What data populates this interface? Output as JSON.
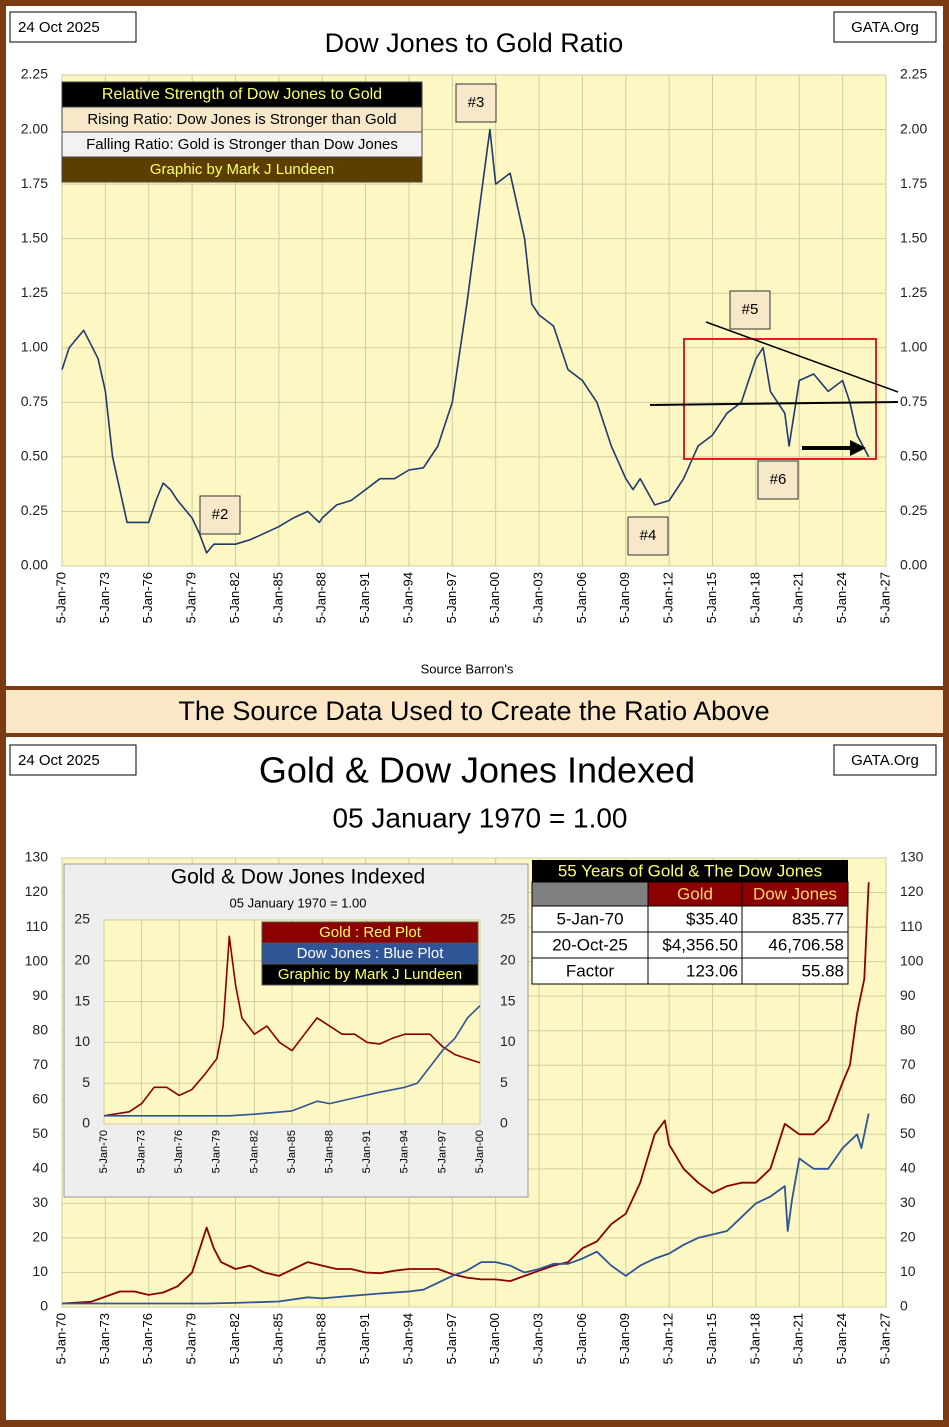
{
  "banner": "The Source Data Used to Create the Ratio Above",
  "chart_data": [
    {
      "type": "line",
      "title": "Dow Jones to Gold Ratio",
      "date": "24 Oct 2025",
      "site": "GATA.Org",
      "source": "Source Barron's",
      "notes": [
        "Relative Strength of Dow Jones to Gold",
        "Rising Ratio: Dow Jones is Stronger than Gold",
        "Falling Ratio: Gold is Stronger than Dow Jones",
        "Graphic by Mark J Lundeen"
      ],
      "annotations": [
        "#2",
        "#3",
        "#4",
        "#5",
        "#6"
      ],
      "xlim": [
        1970,
        2027
      ],
      "xticks": [
        {
          "value": 1970,
          "label": "5-Jan-70"
        },
        {
          "value": 1973,
          "label": "5-Jan-73"
        },
        {
          "value": 1976,
          "label": "5-Jan-76"
        },
        {
          "value": 1979,
          "label": "5-Jan-79"
        },
        {
          "value": 1982,
          "label": "5-Jan-82"
        },
        {
          "value": 1985,
          "label": "5-Jan-85"
        },
        {
          "value": 1988,
          "label": "5-Jan-88"
        },
        {
          "value": 1991,
          "label": "5-Jan-91"
        },
        {
          "value": 1994,
          "label": "5-Jan-94"
        },
        {
          "value": 1997,
          "label": "5-Jan-97"
        },
        {
          "value": 2000,
          "label": "5-Jan-00"
        },
        {
          "value": 2003,
          "label": "5-Jan-03"
        },
        {
          "value": 2006,
          "label": "5-Jan-06"
        },
        {
          "value": 2009,
          "label": "5-Jan-09"
        },
        {
          "value": 2012,
          "label": "5-Jan-12"
        },
        {
          "value": 2015,
          "label": "5-Jan-15"
        },
        {
          "value": 2018,
          "label": "5-Jan-18"
        },
        {
          "value": 2021,
          "label": "5-Jan-21"
        },
        {
          "value": 2024,
          "label": "5-Jan-24"
        },
        {
          "value": 2027,
          "label": "5-Jan-27"
        }
      ],
      "ylim": [
        0,
        2.25
      ],
      "yticks": [
        {
          "value": 0,
          "label": "0.00"
        },
        0.25,
        {
          "value": 0.5,
          "label": "0.50"
        },
        0.75,
        {
          "value": 1,
          "label": "1.00"
        },
        1.25,
        {
          "value": 1.5,
          "label": "1.50"
        },
        1.75,
        {
          "value": 2,
          "label": "2.00"
        },
        2.25
      ],
      "grid": true,
      "series": [
        {
          "color": "#1f3a6e",
          "x": [
            1970,
            1970.5,
            1971.5,
            1972.5,
            1973,
            1973.5,
            1974,
            1974.5,
            1975,
            1976,
            1976.5,
            1977,
            1977.5,
            1978,
            1979,
            1979.5,
            1980,
            1980.5,
            1981,
            1982,
            1983,
            1984,
            1985,
            1986,
            1987,
            1987.8,
            1988,
            1989,
            1990,
            1991,
            1992,
            1993,
            1994,
            1995,
            1996,
            1997,
            1998,
            1999,
            1999.6,
            2000,
            2001,
            2002,
            2002.5,
            2003,
            2004,
            2005,
            2006,
            2007,
            2008,
            2009,
            2009.5,
            2010,
            2011,
            2012,
            2013,
            2014,
            2015,
            2016,
            2017,
            2018,
            2018.5,
            2019,
            2020,
            2020.3,
            2021,
            2022,
            2023,
            2024,
            2024.5,
            2025,
            2025.8
          ],
          "values": [
            0.9,
            1.0,
            1.08,
            0.95,
            0.8,
            0.5,
            0.35,
            0.2,
            0.2,
            0.2,
            0.3,
            0.38,
            0.35,
            0.3,
            0.22,
            0.15,
            0.06,
            0.1,
            0.1,
            0.1,
            0.12,
            0.15,
            0.18,
            0.22,
            0.25,
            0.2,
            0.22,
            0.28,
            0.3,
            0.35,
            0.4,
            0.4,
            0.44,
            0.45,
            0.55,
            0.75,
            1.2,
            1.7,
            2.0,
            1.75,
            1.8,
            1.5,
            1.2,
            1.15,
            1.1,
            0.9,
            0.85,
            0.75,
            0.55,
            0.4,
            0.35,
            0.4,
            0.28,
            0.3,
            0.4,
            0.55,
            0.6,
            0.7,
            0.75,
            0.95,
            1.0,
            0.8,
            0.7,
            0.55,
            0.85,
            0.88,
            0.8,
            0.85,
            0.75,
            0.6,
            0.5
          ]
        }
      ]
    },
    {
      "type": "line",
      "title": "Gold & Dow Jones Indexed",
      "subtitle": "05 January 1970 = 1.00",
      "date": "24 Oct 2025",
      "site": "GATA.Org",
      "xlim": [
        1970,
        2027
      ],
      "xticks": [
        {
          "value": 1970,
          "label": "5-Jan-70"
        },
        {
          "value": 1973,
          "label": "5-Jan-73"
        },
        {
          "value": 1976,
          "label": "5-Jan-76"
        },
        {
          "value": 1979,
          "label": "5-Jan-79"
        },
        {
          "value": 1982,
          "label": "5-Jan-82"
        },
        {
          "value": 1985,
          "label": "5-Jan-85"
        },
        {
          "value": 1988,
          "label": "5-Jan-88"
        },
        {
          "value": 1991,
          "label": "5-Jan-91"
        },
        {
          "value": 1994,
          "label": "5-Jan-94"
        },
        {
          "value": 1997,
          "label": "5-Jan-97"
        },
        {
          "value": 2000,
          "label": "5-Jan-00"
        },
        {
          "value": 2003,
          "label": "5-Jan-03"
        },
        {
          "value": 2006,
          "label": "5-Jan-06"
        },
        {
          "value": 2009,
          "label": "5-Jan-09"
        },
        {
          "value": 2012,
          "label": "5-Jan-12"
        },
        {
          "value": 2015,
          "label": "5-Jan-15"
        },
        {
          "value": 2018,
          "label": "5-Jan-18"
        },
        {
          "value": 2021,
          "label": "5-Jan-21"
        },
        {
          "value": 2024,
          "label": "5-Jan-24"
        },
        {
          "value": 2027,
          "label": "5-Jan-27"
        }
      ],
      "ylim": [
        0,
        130
      ],
      "yticks": [
        0,
        10,
        20,
        30,
        40,
        50,
        60,
        70,
        80,
        90,
        100,
        110,
        120,
        130
      ],
      "grid": true,
      "series": [
        {
          "color": "#8b0000",
          "x": [
            1970,
            1972,
            1974,
            1975,
            1976,
            1977,
            1978,
            1979,
            1980,
            1980.5,
            1981,
            1982,
            1983,
            1984,
            1985,
            1986,
            1987,
            1988,
            1989,
            1990,
            1991,
            1992,
            1993,
            1994,
            1995,
            1996,
            1997,
            1998,
            1999,
            2000,
            2001,
            2002,
            2003,
            2004,
            2005,
            2006,
            2007,
            2008,
            2009,
            2010,
            2011,
            2011.7,
            2012,
            2013,
            2014,
            2015,
            2016,
            2017,
            2018,
            2019,
            2020,
            2021,
            2022,
            2023,
            2024,
            2024.5,
            2025,
            2025.5,
            2025.8
          ],
          "values": [
            1,
            1.5,
            4.5,
            4.5,
            3.5,
            4.2,
            6,
            10,
            23,
            17,
            13,
            11,
            12,
            10,
            9,
            11,
            13,
            12,
            11,
            11,
            10,
            9.8,
            10.5,
            11,
            11,
            11,
            9.5,
            8.5,
            8,
            8,
            7.5,
            9,
            10.5,
            12,
            13,
            17,
            19,
            24,
            27,
            36,
            50,
            54,
            47,
            40,
            36,
            33,
            35,
            36,
            36,
            40,
            53,
            50,
            50,
            54,
            65,
            70,
            85,
            95,
            123
          ]
        },
        {
          "color": "#2f5597",
          "x": [
            1970,
            1975,
            1980,
            1982,
            1985,
            1987,
            1988,
            1990,
            1992,
            1994,
            1995,
            1996,
            1997,
            1998,
            1999,
            2000,
            2001,
            2002,
            2003,
            2004,
            2005,
            2006,
            2007,
            2008,
            2009,
            2010,
            2011,
            2012,
            2013,
            2014,
            2015,
            2016,
            2017,
            2018,
            2019,
            2020,
            2020.2,
            2020.5,
            2021,
            2022,
            2023,
            2024,
            2025,
            2025.3,
            2025.8
          ],
          "values": [
            1,
            1,
            1,
            1.2,
            1.6,
            2.8,
            2.5,
            3.2,
            3.9,
            4.5,
            5,
            7,
            9,
            10.5,
            13,
            13,
            12,
            10,
            11,
            12.5,
            12.5,
            14,
            16,
            12,
            9,
            12,
            14,
            15.5,
            18,
            20,
            21,
            22,
            26,
            30,
            32,
            35,
            22,
            31,
            43,
            40,
            40,
            46,
            50,
            46,
            56
          ]
        }
      ],
      "table": {
        "title": "55 Years of Gold & The Dow Jones",
        "columns": [
          "Gold",
          "Dow Jones"
        ],
        "rows": [
          {
            "label": "5-Jan-70",
            "cells": [
              "$35.40",
              "835.77"
            ]
          },
          {
            "label": "20-Oct-25",
            "cells": [
              "$4,356.50",
              "46,706.58"
            ]
          },
          {
            "label": "Factor",
            "cells": [
              "123.06",
              "55.88"
            ]
          }
        ]
      }
    },
    {
      "type": "line",
      "title": "Gold & Dow Jones Indexed",
      "subtitle": "05 January 1970 = 1.00",
      "credit": "Graphic by Mark J Lundeen",
      "xlim": [
        1970,
        2000
      ],
      "xticks": [
        {
          "value": 1970,
          "label": "5-Jan-70"
        },
        {
          "value": 1973,
          "label": "5-Jan-73"
        },
        {
          "value": 1976,
          "label": "5-Jan-76"
        },
        {
          "value": 1979,
          "label": "5-Jan-79"
        },
        {
          "value": 1982,
          "label": "5-Jan-82"
        },
        {
          "value": 1985,
          "label": "5-Jan-85"
        },
        {
          "value": 1988,
          "label": "5-Jan-88"
        },
        {
          "value": 1991,
          "label": "5-Jan-91"
        },
        {
          "value": 1994,
          "label": "5-Jan-94"
        },
        {
          "value": 1997,
          "label": "5-Jan-97"
        },
        {
          "value": 2000,
          "label": "5-Jan-00"
        }
      ],
      "ylim": [
        0,
        25
      ],
      "yticks": [
        0,
        5,
        10,
        15,
        20,
        25
      ],
      "grid": true,
      "series": [
        {
          "name": "Gold : Red Plot",
          "color": "#8b0000",
          "x": [
            1970,
            1972,
            1973,
            1974,
            1975,
            1976,
            1977,
            1978,
            1979,
            1979.5,
            1980,
            1980.5,
            1981,
            1982,
            1983,
            1984,
            1985,
            1986,
            1987,
            1988,
            1989,
            1990,
            1991,
            1992,
            1993,
            1994,
            1995,
            1996,
            1997,
            1998,
            1999,
            2000
          ],
          "values": [
            1,
            1.5,
            2.5,
            4.5,
            4.5,
            3.5,
            4.2,
            6,
            8,
            12,
            23,
            17,
            13,
            11,
            12,
            10,
            9,
            11,
            13,
            12,
            11,
            11,
            10,
            9.8,
            10.5,
            11,
            11,
            11,
            9.5,
            8.5,
            8,
            7.5
          ]
        },
        {
          "name": "Dow Jones : Blue Plot",
          "color": "#2f5597",
          "x": [
            1970,
            1975,
            1980,
            1982,
            1985,
            1987,
            1988,
            1990,
            1992,
            1994,
            1995,
            1996,
            1997,
            1998,
            1999,
            2000
          ],
          "values": [
            1,
            1,
            1,
            1.2,
            1.6,
            2.8,
            2.5,
            3.2,
            3.9,
            4.5,
            5,
            7,
            9,
            10.5,
            13,
            14.5
          ]
        }
      ]
    }
  ]
}
